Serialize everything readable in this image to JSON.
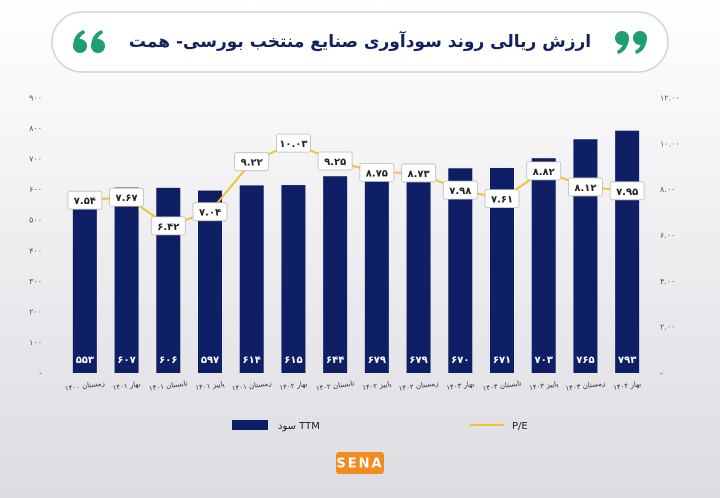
{
  "chart_data": {
    "type": "bar-line",
    "title": "ارزش ریالی روند سودآوری صنایع منتخب بورسی- همت",
    "categories": [
      "زمستان ۱۴۰۰",
      "بهار ۱۴۰۱",
      "تابستان ۱۴۰۱",
      "پاییز ۱۴۰۱",
      "زمستان ۱۴۰۱",
      "بهار ۱۴۰۲",
      "تابستان ۱۴۰۲",
      "پاییز ۱۴۰۲",
      "زمستان ۱۴۰۲",
      "بهار ۱۴۰۳",
      "تابستان ۱۴۰۳",
      "پاییز ۱۴۰۳",
      "زمستان ۱۴۰۳",
      "بهار ۱۴۰۴"
    ],
    "series": [
      {
        "name": "سود TTM",
        "color": "#0f1f66",
        "axis": "y",
        "values": [
          553,
          607,
          606,
          597,
          614,
          615,
          644,
          679,
          679,
          670,
          671,
          703,
          765,
          793
        ],
        "value_labels": [
          "۵۵۳",
          "۶۰۷",
          "۶۰۶",
          "۵۹۷",
          "۶۱۴",
          "۶۱۵",
          "۶۴۴",
          "۶۷۹",
          "۶۷۹",
          "۶۷۰",
          "۶۷۱",
          "۷۰۳",
          "۷۶۵",
          "۷۹۳"
        ]
      },
      {
        "name": "P/E",
        "color": "#f2c230",
        "axis": "y2",
        "values": [
          7.54,
          7.67,
          6.42,
          7.04,
          9.22,
          10.03,
          9.25,
          8.75,
          8.73,
          7.98,
          7.61,
          8.82,
          8.12,
          7.95
        ],
        "value_labels": [
          "۷.۵۴",
          "۷.۶۷",
          "۶.۴۲",
          "۷.۰۴",
          "۹.۲۲",
          "۱۰.۰۳",
          "۹.۲۵",
          "۸.۷۵",
          "۸.۷۳",
          "۷.۹۸",
          "۷.۶۱",
          "۸.۸۲",
          "۸.۱۲",
          "۷.۹۵"
        ]
      }
    ],
    "ylim": [
      0,
      900
    ],
    "yticks": [
      {
        "value": 0,
        "label": "-"
      },
      {
        "value": 100,
        "label": "۱۰۰"
      },
      {
        "value": 200,
        "label": "۲۰۰"
      },
      {
        "value": 300,
        "label": "۳۰۰"
      },
      {
        "value": 400,
        "label": "۴۰۰"
      },
      {
        "value": 500,
        "label": "۵۰۰"
      },
      {
        "value": 600,
        "label": "۶۰۰"
      },
      {
        "value": 700,
        "label": "۷۰۰"
      },
      {
        "value": 800,
        "label": "۸۰۰"
      },
      {
        "value": 900,
        "label": "۹۰۰"
      }
    ],
    "y2lim": [
      0,
      12
    ],
    "y2ticks": [
      {
        "value": 0,
        "label": "-"
      },
      {
        "value": 2,
        "label": "۲.۰۰"
      },
      {
        "value": 4,
        "label": "۴.۰۰"
      },
      {
        "value": 6,
        "label": "۶.۰۰"
      },
      {
        "value": 8,
        "label": "۸.۰۰"
      },
      {
        "value": 10,
        "label": "۱۰.۰۰"
      },
      {
        "value": 12,
        "label": "۱۲.۰۰"
      }
    ],
    "logo": "SENA"
  }
}
